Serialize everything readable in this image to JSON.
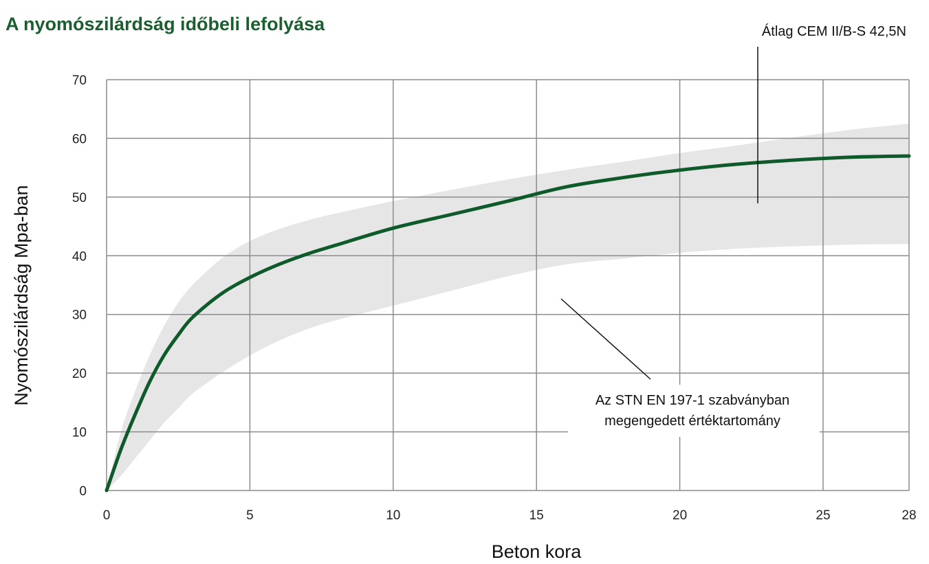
{
  "chart_data": {
    "type": "line",
    "title": "A nyomószilárdság időbeli lefolyása",
    "xlabel": "Beton kora",
    "ylabel": "Nyomószilárdság Mpa-ban",
    "xlim": [
      0,
      28
    ],
    "ylim": [
      0,
      70
    ],
    "xticks": [
      0,
      5,
      10,
      15,
      20,
      25,
      28
    ],
    "yticks": [
      0,
      10,
      20,
      30,
      40,
      50,
      60,
      70
    ],
    "grid": true,
    "series": [
      {
        "name": "Átlag CEM II/B-S 42,5N",
        "color": "#0f5a2b",
        "x": [
          0,
          0.5,
          1,
          1.5,
          2,
          2.5,
          3,
          4,
          5,
          6,
          7,
          8,
          10,
          12,
          14,
          16,
          18,
          20,
          22,
          24,
          26,
          28
        ],
        "y": [
          0,
          7,
          13,
          18.5,
          23,
          26.5,
          29.5,
          33.5,
          36.3,
          38.5,
          40.3,
          41.8,
          44.7,
          47,
          49.3,
          51.7,
          53.3,
          54.6,
          55.6,
          56.3,
          56.8,
          57
        ]
      }
    ],
    "band": {
      "name": "Az STN EN 197-1 szabványban megengedett értéktartomány",
      "color": "#e6e6e6",
      "x": [
        0,
        0.5,
        1,
        1.5,
        2,
        2.5,
        3,
        4,
        5,
        6,
        7,
        8,
        10,
        12,
        14,
        16,
        18,
        20,
        22,
        24,
        26,
        28
      ],
      "upper": [
        0,
        10,
        17,
        23,
        28,
        32,
        35,
        39.5,
        42.5,
        44.5,
        46,
        47.2,
        49.3,
        51.2,
        53,
        54.6,
        56,
        57.5,
        58.8,
        60.2,
        61.5,
        62.5
      ],
      "lower": [
        0,
        2.5,
        5.5,
        8.5,
        11.5,
        14,
        16.5,
        20,
        23,
        25.5,
        27.5,
        29,
        31.5,
        34,
        36.5,
        38.5,
        39.5,
        40.5,
        41.2,
        41.6,
        41.9,
        42
      ]
    },
    "annotations": [
      {
        "text": "Átlag CEM II/B-S 42,5N"
      },
      {
        "text_lines": [
          "Az STN EN 197-1 szabványban",
          "megengedett értéktartomány"
        ]
      }
    ]
  }
}
